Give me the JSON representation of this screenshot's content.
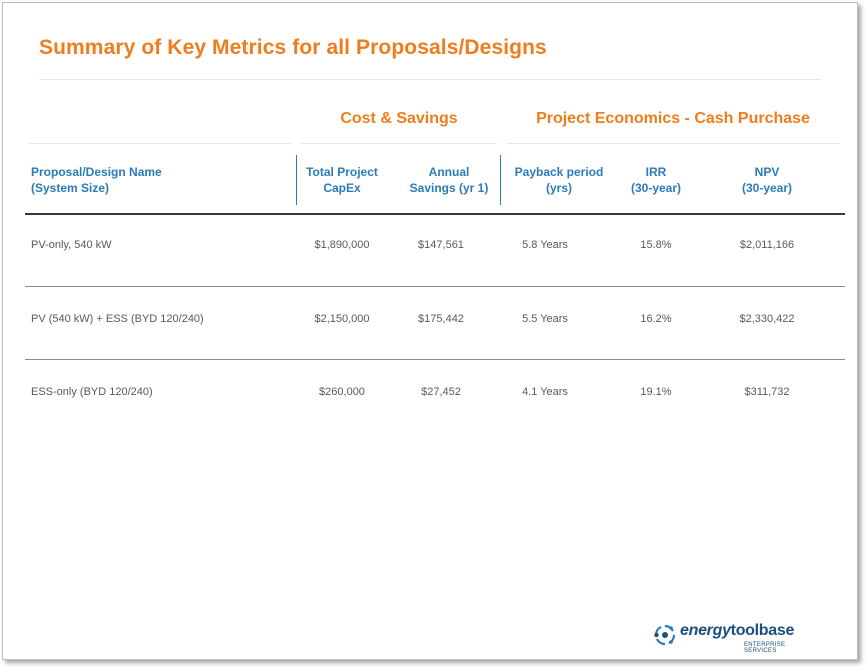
{
  "title": "Summary of Key Metrics for all Proposals/Designs",
  "groups": {
    "cost": "Cost & Savings",
    "economics": "Project Economics - Cash Purchase"
  },
  "columns": {
    "name": "Proposal/Design Name\n(System Size)",
    "capex": "Total Project\nCapEx",
    "savings": "Annual\nSavings (yr 1)",
    "payback": "Payback period\n(yrs)",
    "irr": "IRR\n(30-year)",
    "npv": "NPV\n(30-year)"
  },
  "rows": [
    {
      "name": "PV-only, 540 kW",
      "capex": "$1,890,000",
      "savings": "$147,561",
      "payback": "5.8 Years",
      "irr": "15.8%",
      "npv": "$2,011,166"
    },
    {
      "name": "PV (540 kW) + ESS (BYD 120/240)",
      "capex": "$2,150,000",
      "savings": "$175,442",
      "payback": "5.5 Years",
      "irr": "16.2%",
      "npv": "$2,330,422"
    },
    {
      "name": "ESS-only (BYD 120/240)",
      "capex": "$260,000",
      "savings": "$27,452",
      "payback": "4.1 Years",
      "irr": "19.1%",
      "npv": "$311,732"
    }
  ],
  "logo": {
    "brand_part1": "energy",
    "brand_part2": "toolbase",
    "tagline": "ENTERPRISE SERVICES",
    "icon": "energy-toolbase-logo-icon"
  },
  "colors": {
    "accent_orange": "#ee7d1e",
    "header_blue": "#2b7bb9",
    "logo_navy": "#1c4e7e"
  }
}
